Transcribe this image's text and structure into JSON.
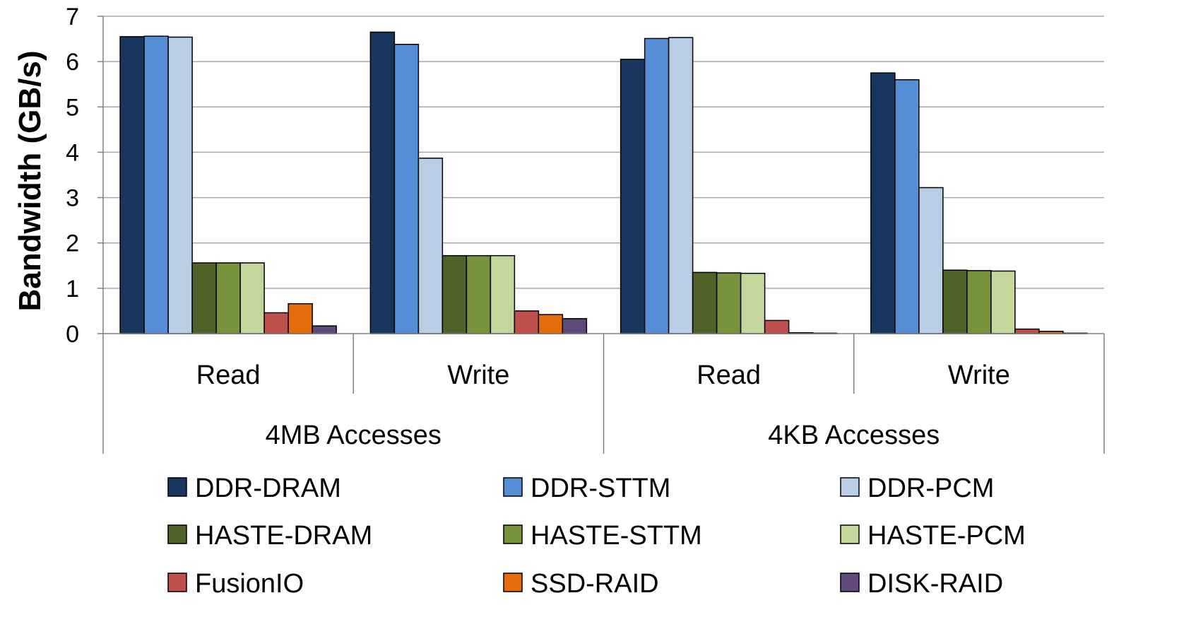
{
  "chart_data": {
    "type": "bar",
    "title": "",
    "ylabel": "Bandwidth (GB/s)",
    "xlabel": "",
    "ylim": [
      0,
      7
    ],
    "yticks": [
      0,
      1,
      2,
      3,
      4,
      5,
      6,
      7
    ],
    "grid": true,
    "legend_position": "bottom",
    "groups": [
      {
        "label": "4MB Accesses",
        "categories": [
          "Read",
          "Write"
        ]
      },
      {
        "label": "4KB Accesses",
        "categories": [
          "Read",
          "Write"
        ]
      }
    ],
    "categories": [
      "Read",
      "Write",
      "Read",
      "Write"
    ],
    "series": [
      {
        "name": "DDR-DRAM",
        "color": "#17375E",
        "values": [
          6.55,
          6.65,
          6.05,
          5.75
        ]
      },
      {
        "name": "DDR-STTM",
        "color": "#558ED5",
        "values": [
          6.56,
          6.38,
          6.51,
          5.6
        ]
      },
      {
        "name": "DDR-PCM",
        "color": "#B9CDE5",
        "values": [
          6.54,
          3.87,
          6.53,
          3.22
        ]
      },
      {
        "name": "HASTE-DRAM",
        "color": "#4F6228",
        "values": [
          1.56,
          1.72,
          1.35,
          1.4
        ]
      },
      {
        "name": "HASTE-STTM",
        "color": "#77933C",
        "values": [
          1.56,
          1.72,
          1.34,
          1.39
        ]
      },
      {
        "name": "HASTE-PCM",
        "color": "#C3D69B",
        "values": [
          1.56,
          1.72,
          1.33,
          1.38
        ]
      },
      {
        "name": "FusionIO",
        "color": "#C0504D",
        "values": [
          0.46,
          0.5,
          0.29,
          0.1
        ]
      },
      {
        "name": "SSD-RAID",
        "color": "#E46C0A",
        "values": [
          0.66,
          0.42,
          0.02,
          0.05
        ]
      },
      {
        "name": "DISK-RAID",
        "color": "#604A7B",
        "values": [
          0.17,
          0.33,
          0.01,
          0.01
        ]
      }
    ]
  }
}
